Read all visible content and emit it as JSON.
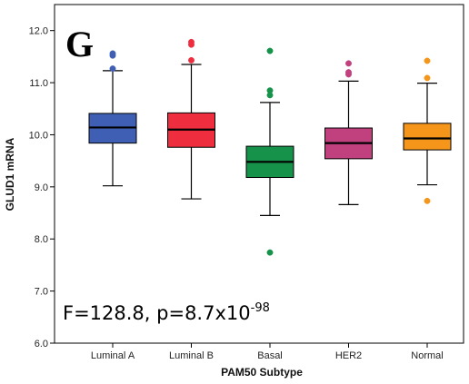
{
  "panel_letter": "G",
  "annotation": {
    "main": "F=128.8, p=8.7x10",
    "exponent": "-98"
  },
  "chart_data": {
    "type": "box",
    "xlabel": "PAM50 Subtype",
    "ylabel": "GLUD1 mRNA",
    "ylim": [
      6.0,
      12.5
    ],
    "yticks": [
      "6.0",
      "7.0",
      "8.0",
      "9.0",
      "10.0",
      "11.0",
      "12.0"
    ],
    "grid": false,
    "categories": [
      "Luminal A",
      "Luminal B",
      "Basal",
      "HER2",
      "Normal"
    ],
    "colors": [
      "#3f5fb5",
      "#ee2e3e",
      "#16924a",
      "#c1407e",
      "#f5961b"
    ],
    "boxes": [
      {
        "category": "Luminal A",
        "whisker_low": 9.02,
        "q1": 9.84,
        "median": 10.14,
        "q3": 10.41,
        "whisker_high": 11.23,
        "outliers": [
          11.27,
          11.52,
          11.56
        ]
      },
      {
        "category": "Luminal B",
        "whisker_low": 8.77,
        "q1": 9.76,
        "median": 10.1,
        "q3": 10.42,
        "whisker_high": 11.35,
        "outliers": [
          11.43,
          11.73,
          11.78
        ]
      },
      {
        "category": "Basal",
        "whisker_low": 8.45,
        "q1": 9.18,
        "median": 9.48,
        "q3": 9.78,
        "whisker_high": 10.62,
        "outliers": [
          7.74,
          10.76,
          10.85,
          11.61
        ]
      },
      {
        "category": "HER2",
        "whisker_low": 8.66,
        "q1": 9.54,
        "median": 9.84,
        "q3": 10.13,
        "whisker_high": 11.03,
        "outliers": [
          11.16,
          11.2,
          11.37
        ]
      },
      {
        "category": "Normal",
        "whisker_low": 9.04,
        "q1": 9.71,
        "median": 9.93,
        "q3": 10.22,
        "whisker_high": 10.99,
        "outliers": [
          8.73,
          11.09,
          11.42
        ]
      }
    ]
  }
}
